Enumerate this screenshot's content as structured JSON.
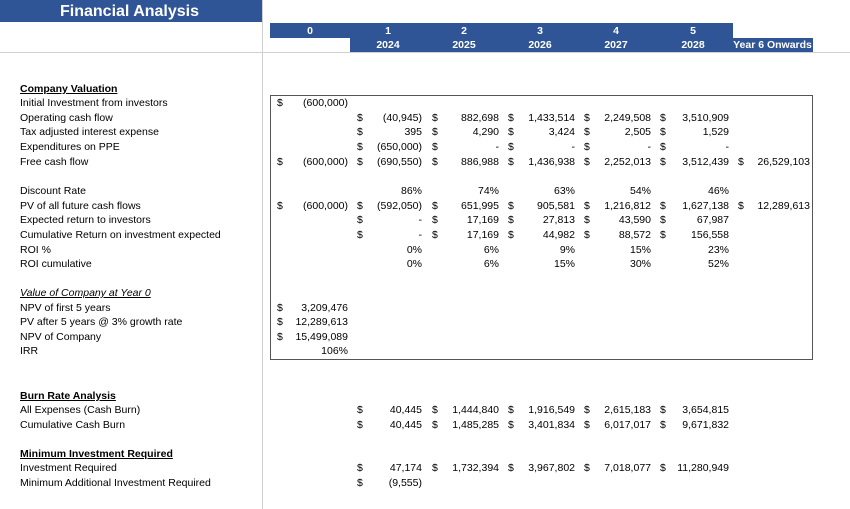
{
  "header": {
    "title": "Financial Analysis",
    "periods": [
      "0",
      "1",
      "2",
      "3",
      "4",
      "5"
    ],
    "years": [
      "2024",
      "2025",
      "2026",
      "2027",
      "2028",
      "Year 6 Onwards"
    ]
  },
  "sections": [
    {
      "heading": "Company Valuation",
      "style": "bold",
      "rows": [
        {
          "label": "Initial Investment from investors",
          "cells": [
            {
              "cur": "$",
              "val": "(600,000)"
            },
            null,
            null,
            null,
            null,
            null,
            null
          ]
        },
        {
          "label": "Operating cash flow",
          "cells": [
            null,
            {
              "cur": "$",
              "val": "(40,945)"
            },
            {
              "cur": "$",
              "val": "882,698"
            },
            {
              "cur": "$",
              "val": "1,433,514"
            },
            {
              "cur": "$",
              "val": "2,249,508"
            },
            {
              "cur": "$",
              "val": "3,510,909"
            },
            null
          ]
        },
        {
          "label": "Tax adjusted interest expense",
          "cells": [
            null,
            {
              "cur": "$",
              "val": "395"
            },
            {
              "cur": "$",
              "val": "4,290"
            },
            {
              "cur": "$",
              "val": "3,424"
            },
            {
              "cur": "$",
              "val": "2,505"
            },
            {
              "cur": "$",
              "val": "1,529"
            },
            null
          ]
        },
        {
          "label": "Expenditures on PPE",
          "cells": [
            null,
            {
              "cur": "$",
              "val": "(650,000)"
            },
            {
              "cur": "$",
              "val": "-"
            },
            {
              "cur": "$",
              "val": "-"
            },
            {
              "cur": "$",
              "val": "-"
            },
            {
              "cur": "$",
              "val": "-"
            },
            null
          ]
        },
        {
          "label": "Free cash flow",
          "cells": [
            {
              "cur": "$",
              "val": "(600,000)"
            },
            {
              "cur": "$",
              "val": "(690,550)"
            },
            {
              "cur": "$",
              "val": "886,988"
            },
            {
              "cur": "$",
              "val": "1,436,938"
            },
            {
              "cur": "$",
              "val": "2,252,013"
            },
            {
              "cur": "$",
              "val": "3,512,439"
            },
            {
              "cur": "$",
              "val": "26,529,103"
            }
          ]
        },
        {
          "label": "Discount Rate",
          "cells": [
            null,
            {
              "val": "86%"
            },
            {
              "val": "74%"
            },
            {
              "val": "63%"
            },
            {
              "val": "54%"
            },
            {
              "val": "46%"
            },
            null
          ]
        },
        {
          "label": "PV of all future cash flows",
          "cells": [
            {
              "cur": "$",
              "val": "(600,000)"
            },
            {
              "cur": "$",
              "val": "(592,050)"
            },
            {
              "cur": "$",
              "val": "651,995"
            },
            {
              "cur": "$",
              "val": "905,581"
            },
            {
              "cur": "$",
              "val": "1,216,812"
            },
            {
              "cur": "$",
              "val": "1,627,138"
            },
            {
              "cur": "$",
              "val": "12,289,613"
            }
          ]
        },
        {
          "label": "Expected return to investors",
          "cells": [
            null,
            {
              "cur": "$",
              "val": "-"
            },
            {
              "cur": "$",
              "val": "17,169"
            },
            {
              "cur": "$",
              "val": "27,813"
            },
            {
              "cur": "$",
              "val": "43,590"
            },
            {
              "cur": "$",
              "val": "67,987"
            },
            null
          ]
        },
        {
          "label": "Cumulative Return on investment expected",
          "cells": [
            null,
            {
              "cur": "$",
              "val": "-"
            },
            {
              "cur": "$",
              "val": "17,169"
            },
            {
              "cur": "$",
              "val": "44,982"
            },
            {
              "cur": "$",
              "val": "88,572"
            },
            {
              "cur": "$",
              "val": "156,558"
            },
            null
          ]
        },
        {
          "label": "ROI %",
          "cells": [
            null,
            {
              "val": "0%"
            },
            {
              "val": "6%"
            },
            {
              "val": "9%"
            },
            {
              "val": "15%"
            },
            {
              "val": "23%"
            },
            null
          ]
        },
        {
          "label": "ROI cumulative",
          "cells": [
            null,
            {
              "val": "0%"
            },
            {
              "val": "6%"
            },
            {
              "val": "15%"
            },
            {
              "val": "30%"
            },
            {
              "val": "52%"
            },
            null
          ]
        }
      ]
    },
    {
      "heading": "Value of Company at Year 0",
      "style": "italic",
      "rows": [
        {
          "label": "NPV of first 5 years",
          "cells": [
            {
              "cur": "$",
              "val": "3,209,476"
            },
            null,
            null,
            null,
            null,
            null,
            null
          ]
        },
        {
          "label": "PV after 5 years @ 3% growth rate",
          "cells": [
            {
              "cur": "$",
              "val": "12,289,613"
            },
            null,
            null,
            null,
            null,
            null,
            null
          ]
        },
        {
          "label": "NPV of Company",
          "cells": [
            {
              "cur": "$",
              "val": "15,499,089"
            },
            null,
            null,
            null,
            null,
            null,
            null
          ]
        },
        {
          "label": "IRR",
          "cells": [
            {
              "val": "106%"
            },
            null,
            null,
            null,
            null,
            null,
            null
          ]
        }
      ]
    },
    {
      "heading": "Burn Rate Analysis",
      "style": "bold",
      "rows": [
        {
          "label": "All Expenses (Cash Burn)",
          "cells": [
            null,
            {
              "cur": "$",
              "val": "40,445"
            },
            {
              "cur": "$",
              "val": "1,444,840"
            },
            {
              "cur": "$",
              "val": "1,916,549"
            },
            {
              "cur": "$",
              "val": "2,615,183"
            },
            {
              "cur": "$",
              "val": "3,654,815"
            },
            null
          ]
        },
        {
          "label": "Cumulative Cash Burn",
          "cells": [
            null,
            {
              "cur": "$",
              "val": "40,445"
            },
            {
              "cur": "$",
              "val": "1,485,285"
            },
            {
              "cur": "$",
              "val": "3,401,834"
            },
            {
              "cur": "$",
              "val": "6,017,017"
            },
            {
              "cur": "$",
              "val": "9,671,832"
            },
            null
          ]
        }
      ]
    },
    {
      "heading": "Minimum Investment Required",
      "style": "bold",
      "rows": [
        {
          "label": "Investment Required",
          "cells": [
            null,
            {
              "cur": "$",
              "val": "47,174"
            },
            {
              "cur": "$",
              "val": "1,732,394"
            },
            {
              "cur": "$",
              "val": "3,967,802"
            },
            {
              "cur": "$",
              "val": "7,018,077"
            },
            {
              "cur": "$",
              "val": "11,280,949"
            },
            null
          ]
        },
        {
          "label": "Minimum Additional Investment Required",
          "cells": [
            null,
            {
              "cur": "$",
              "val": "(9,555)"
            },
            null,
            null,
            null,
            null,
            null
          ]
        }
      ]
    }
  ]
}
